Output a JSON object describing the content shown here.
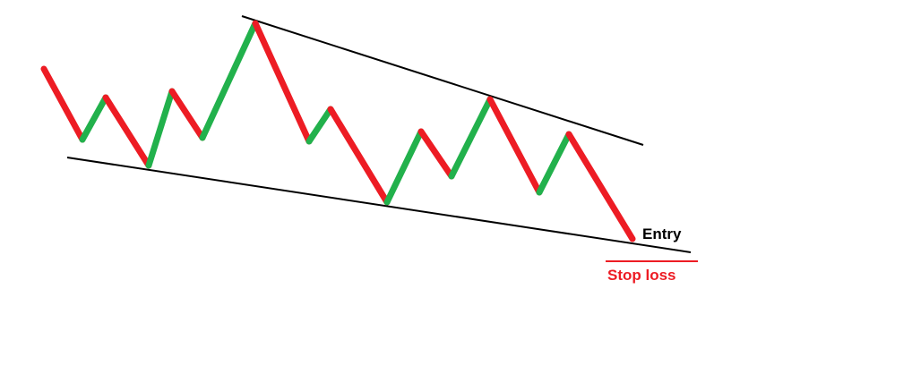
{
  "labels": {
    "entry": "Entry",
    "stop_loss": "Stop loss"
  },
  "colors": {
    "up_leg": "#22b14c",
    "down_leg": "#ed1c24",
    "trendline": "#000000",
    "entry_text": "#000000",
    "stop_loss": "#ed1c24",
    "background": "#ffffff"
  }
}
